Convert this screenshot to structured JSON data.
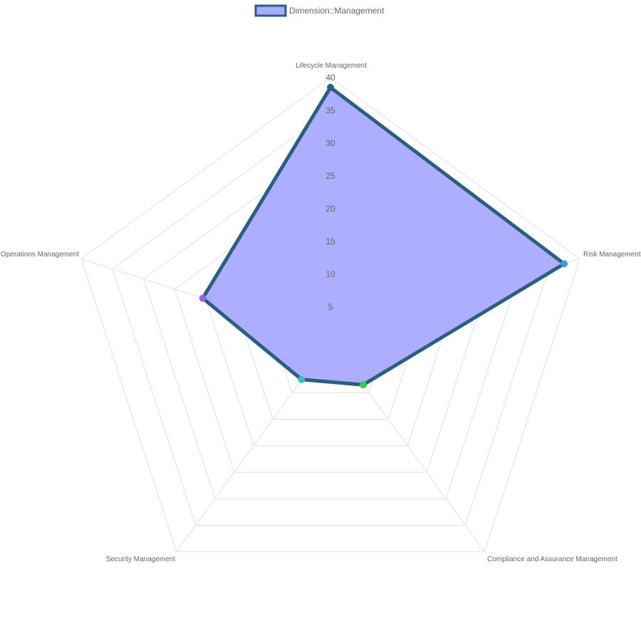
{
  "chart_data": {
    "type": "radar",
    "legend": {
      "position": "top-center"
    },
    "categories": [
      "Lifecycle Management",
      "Risk Management",
      "Compliance and Assurance Management",
      "Security Management",
      "Operations Management"
    ],
    "series": [
      {
        "name": "Dimension::Management",
        "values": [
          38.5,
          37.5,
          8.5,
          7.5,
          20.5
        ],
        "fill_color": "#aaaaff",
        "line_color": "#2b5f80",
        "point_colors": [
          "#2b5f80",
          "#3d9ae8",
          "#2ecc55",
          "#3bbfbf",
          "#9b5ff0"
        ]
      }
    ],
    "r_range": [
      0,
      40
    ],
    "r_ticks": [
      5,
      10,
      15,
      20,
      25,
      30,
      35,
      40
    ],
    "grid": true
  }
}
